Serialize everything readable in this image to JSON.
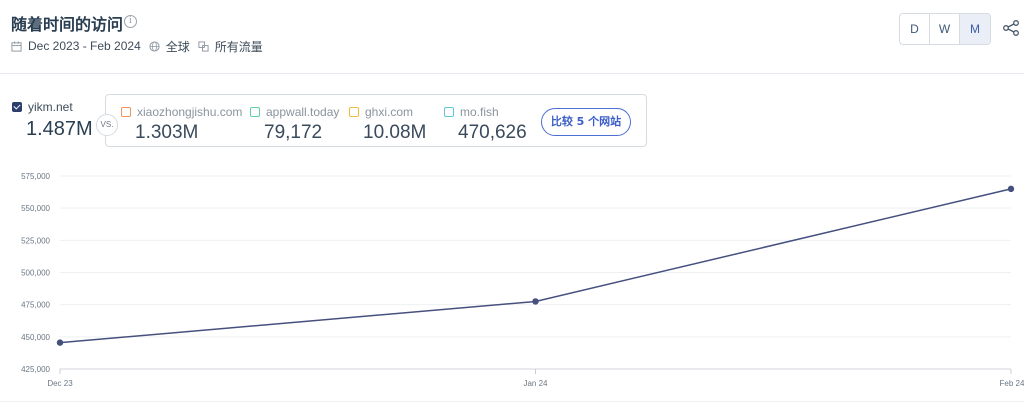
{
  "header": {
    "title": "随着时间的访问",
    "info_icon": "info-icon",
    "date_range": "Dec 2023 - Feb 2024",
    "region": "全球",
    "traffic_type": "所有流量",
    "granularity": [
      "D",
      "W",
      "M"
    ],
    "granularity_selected": "M"
  },
  "main_site": {
    "name": "yikm.net",
    "value": "1.487M",
    "checked": true,
    "color": "#2c3f6c"
  },
  "vs_label": "VS.",
  "competitors": [
    {
      "name": "xiaozhongjishu.com",
      "value": "1.303M",
      "color": "#f0915a"
    },
    {
      "name": "appwall.today",
      "value": "79,172",
      "color": "#5fcfa6"
    },
    {
      "name": "ghxi.com",
      "value": "10.08M",
      "color": "#f3bb3d"
    },
    {
      "name": "mo.fish",
      "value": "470,626",
      "color": "#5ec6d6"
    }
  ],
  "compare_button": "比较 5 个网站",
  "chart_data": {
    "type": "line",
    "categories": [
      "Dec 23",
      "Jan 24",
      "Feb 24"
    ],
    "series": [
      {
        "name": "yikm.net",
        "values": [
          445500,
          477500,
          565000
        ],
        "color": "#45507e"
      }
    ],
    "ylim": [
      425000,
      575000
    ],
    "yticks": [
      "575,000",
      "550,000",
      "525,000",
      "500,000",
      "475,000",
      "450,000",
      "425,000"
    ],
    "grid": true
  }
}
